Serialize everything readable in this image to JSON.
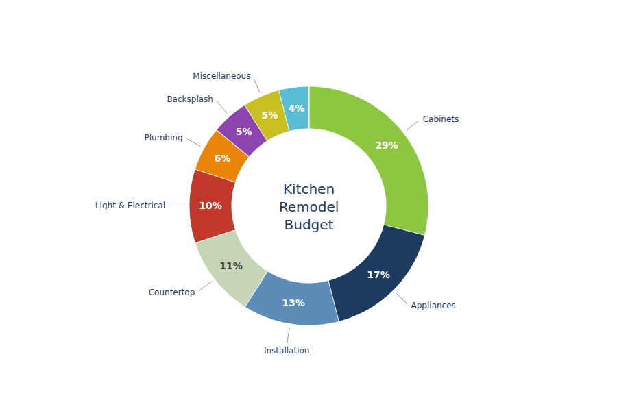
{
  "chart_data": {
    "type": "donut",
    "title": "Kitchen\nRemodel\nBudget",
    "categories": [
      "Cabinets",
      "Appliances",
      "Installation",
      "Countertop",
      "Light & Electrical",
      "Plumbing",
      "Backsplash",
      "Miscellaneous",
      null
    ],
    "values": [
      29,
      17,
      13,
      11,
      10,
      6,
      5,
      5,
      4
    ],
    "value_labels": [
      "29%",
      "17%",
      "13%",
      "11%",
      "10%",
      "6%",
      "5%",
      "5%",
      "4%"
    ],
    "colors": [
      "#8dc63f",
      "#1e3a5f",
      "#5b8db8",
      "#c5d5b5",
      "#c0392b",
      "#e8850a",
      "#8e44ad",
      "#c8c020",
      "#5bbcd6"
    ],
    "data_labels": true
  }
}
